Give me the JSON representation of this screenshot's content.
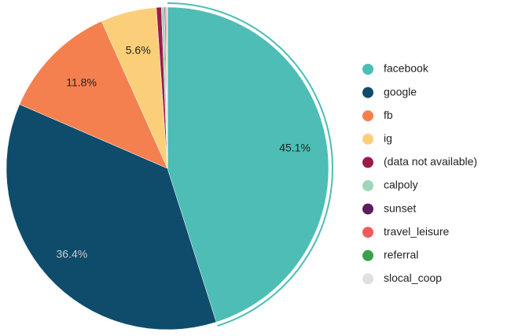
{
  "chart_data": {
    "type": "pie",
    "categories": [
      "facebook",
      "google",
      "fb",
      "ig",
      "(data not available)",
      "calpoly",
      "sunset",
      "travel_leisure",
      "referral",
      "slocal_coop"
    ],
    "values": [
      45.1,
      36.4,
      11.8,
      5.6,
      0.5,
      0.3,
      0.1,
      0.1,
      0.05,
      0.05
    ],
    "value_labels": [
      "45.1%",
      "36.4%",
      "11.8%",
      "5.6%",
      null,
      null,
      null,
      null,
      null,
      null
    ],
    "colors": [
      "#4dbdb5",
      "#0f4c6b",
      "#f5804f",
      "#fbcf7a",
      "#9b1b4b",
      "#9fd6b8",
      "#5a1e5c",
      "#f15b5b",
      "#3aa04a",
      "#e0e0e0"
    ],
    "legend": "right"
  }
}
